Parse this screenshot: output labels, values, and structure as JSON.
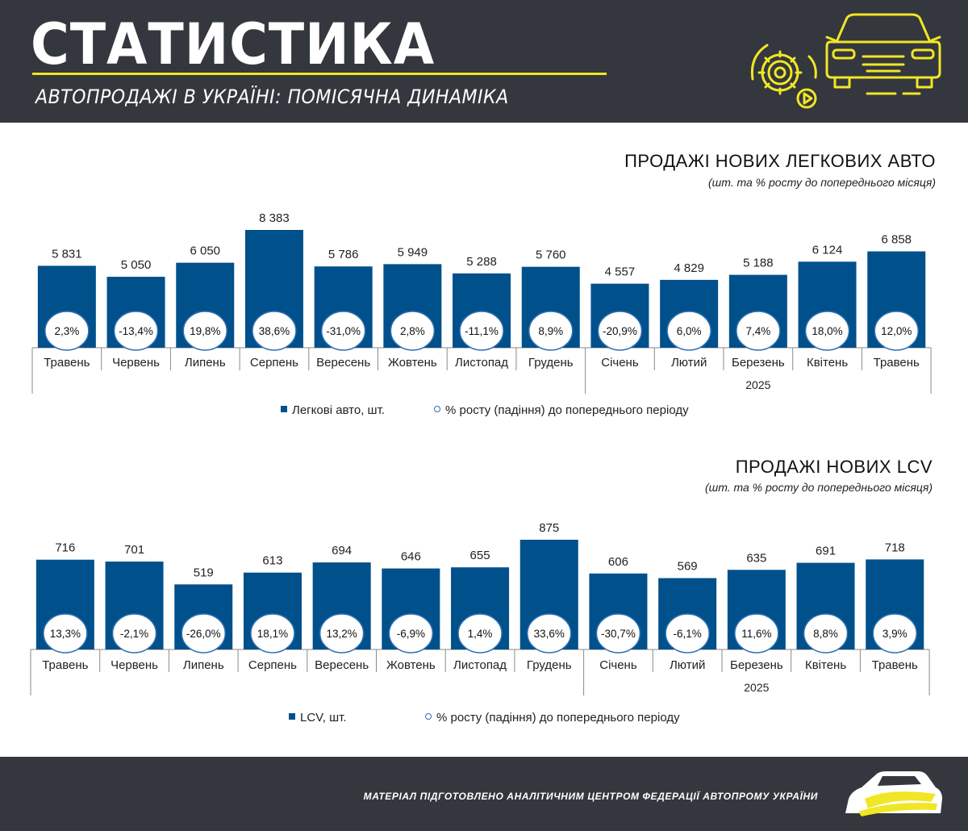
{
  "header": {
    "title": "СТАТИСТИКА",
    "subtitle": "АВТОПРОДАЖІ В УКРАЇНІ: ПОМІСЯЧНА ДИНАМІКА",
    "accent_color": "#f0e626",
    "background_color": "#34373d",
    "icon": "car-gear-icon"
  },
  "footer": {
    "text": "МАТЕРІАЛ ПІДГОТОВЛЕНО АНАЛІТИЧНИМ ЦЕНТРОМ ФЕДЕРАЦІЇ АВТОПРОМУ УКРАЇНИ",
    "logo_icon": "car-logo-icon"
  },
  "bar_color": "#00508c",
  "chart_data": [
    {
      "type": "bar",
      "title": "ПРОДАЖІ НОВИХ ЛЕГКОВИХ АВТО",
      "subtitle": "(шт. та % росту до попереднього місяця)",
      "categories": [
        "Травень",
        "Червень",
        "Липень",
        "Серпень",
        "Вересень",
        "Жовтень",
        "Листопад",
        "Грудень",
        "Січень",
        "Лютий",
        "Березень",
        "Квітень",
        "Травень"
      ],
      "values": [
        5831,
        5050,
        6050,
        8383,
        5786,
        5949,
        5288,
        5760,
        4557,
        4829,
        5188,
        6124,
        6858
      ],
      "value_labels": [
        "5 831",
        "5 050",
        "6 050",
        "8 383",
        "5 786",
        "5 949",
        "5 288",
        "5 760",
        "4 557",
        "4 829",
        "5 188",
        "6 124",
        "6 858"
      ],
      "growth_labels": [
        "2,3%",
        "-13,4%",
        "19,8%",
        "38,6%",
        "-31,0%",
        "2,8%",
        "-11,1%",
        "8,9%",
        "-20,9%",
        "6,0%",
        "7,4%",
        "18,0%",
        "12,0%"
      ],
      "year_label": "2025",
      "year_start_index": 8,
      "series": [
        {
          "name": "Легкові авто, шт.",
          "values": [
            5831,
            5050,
            6050,
            8383,
            5786,
            5949,
            5288,
            5760,
            4557,
            4829,
            5188,
            6124,
            6858
          ]
        },
        {
          "name": "% росту  (падіння) до попереднього періоду",
          "values": [
            2.3,
            -13.4,
            19.8,
            38.6,
            -31.0,
            2.8,
            -11.1,
            8.9,
            -20.9,
            6.0,
            7.4,
            18.0,
            12.0
          ]
        }
      ]
    },
    {
      "type": "bar",
      "title": "ПРОДАЖІ НОВИХ  LCV",
      "subtitle": "(шт. та % росту до попереднього місяця)",
      "categories": [
        "Травень",
        "Червень",
        "Липень",
        "Серпень",
        "Вересень",
        "Жовтень",
        "Листопад",
        "Грудень",
        "Січень",
        "Лютий",
        "Березень",
        "Квітень",
        "Травень"
      ],
      "values": [
        716,
        701,
        519,
        613,
        694,
        646,
        655,
        875,
        606,
        569,
        635,
        691,
        718
      ],
      "value_labels": [
        "716",
        "701",
        "519",
        "613",
        "694",
        "646",
        "655",
        "875",
        "606",
        "569",
        "635",
        "691",
        "718"
      ],
      "growth_labels": [
        "13,3%",
        "-2,1%",
        "-26,0%",
        "18,1%",
        "13,2%",
        "-6,9%",
        "1,4%",
        "33,6%",
        "-30,7%",
        "-6,1%",
        "11,6%",
        "8,8%",
        "3,9%"
      ],
      "year_label": "2025",
      "year_start_index": 8,
      "series": [
        {
          "name": "LCV, шт.",
          "values": [
            716,
            701,
            519,
            613,
            694,
            646,
            655,
            875,
            606,
            569,
            635,
            691,
            718
          ]
        },
        {
          "name": "% росту  (падіння) до попереднього періоду",
          "values": [
            13.3,
            -2.1,
            -26.0,
            18.1,
            13.2,
            -6.9,
            1.4,
            33.6,
            -30.7,
            -6.1,
            11.6,
            8.8,
            3.9
          ]
        }
      ]
    }
  ]
}
